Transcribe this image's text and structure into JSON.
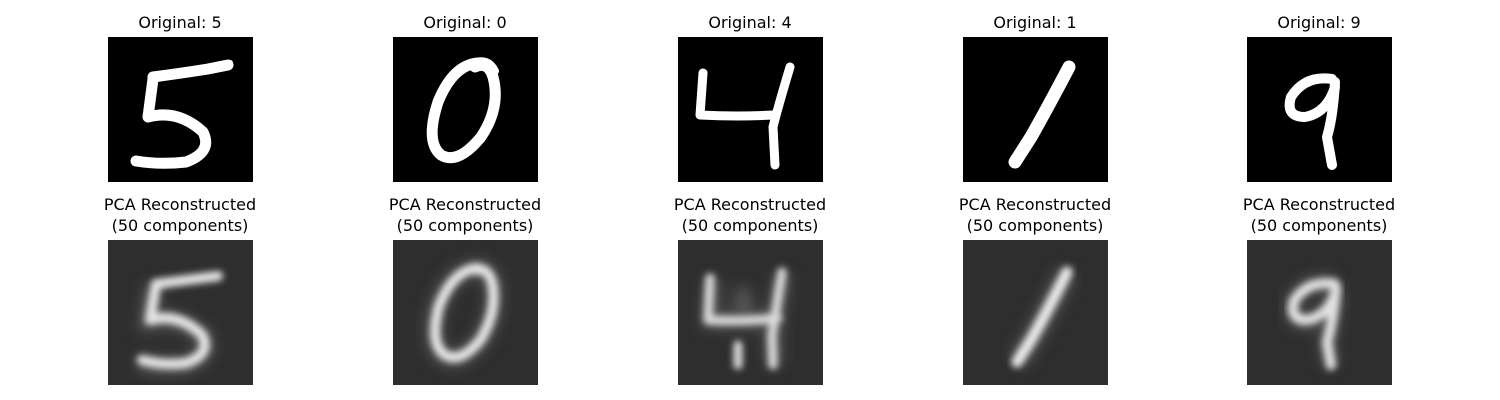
{
  "originals": [
    {
      "title": "Original: 5",
      "digit": "5"
    },
    {
      "title": "Original: 0",
      "digit": "0"
    },
    {
      "title": "Original: 4",
      "digit": "4"
    },
    {
      "title": "Original: 1",
      "digit": "1"
    },
    {
      "title": "Original: 9",
      "digit": "9"
    }
  ],
  "reconstructions": [
    {
      "title_line1": "PCA Reconstructed",
      "title_line2": "(50 components)"
    },
    {
      "title_line1": "PCA Reconstructed",
      "title_line2": "(50 components)"
    },
    {
      "title_line1": "PCA Reconstructed",
      "title_line2": "(50 components)"
    },
    {
      "title_line1": "PCA Reconstructed",
      "title_line2": "(50 components)"
    },
    {
      "title_line1": "PCA Reconstructed",
      "title_line2": "(50 components)"
    }
  ],
  "colors": {
    "original_background": "#000000",
    "reconstructed_background": "#2e2e2e",
    "stroke_original": "#ffffff",
    "stroke_reconstructed": "#e6e6e6"
  }
}
